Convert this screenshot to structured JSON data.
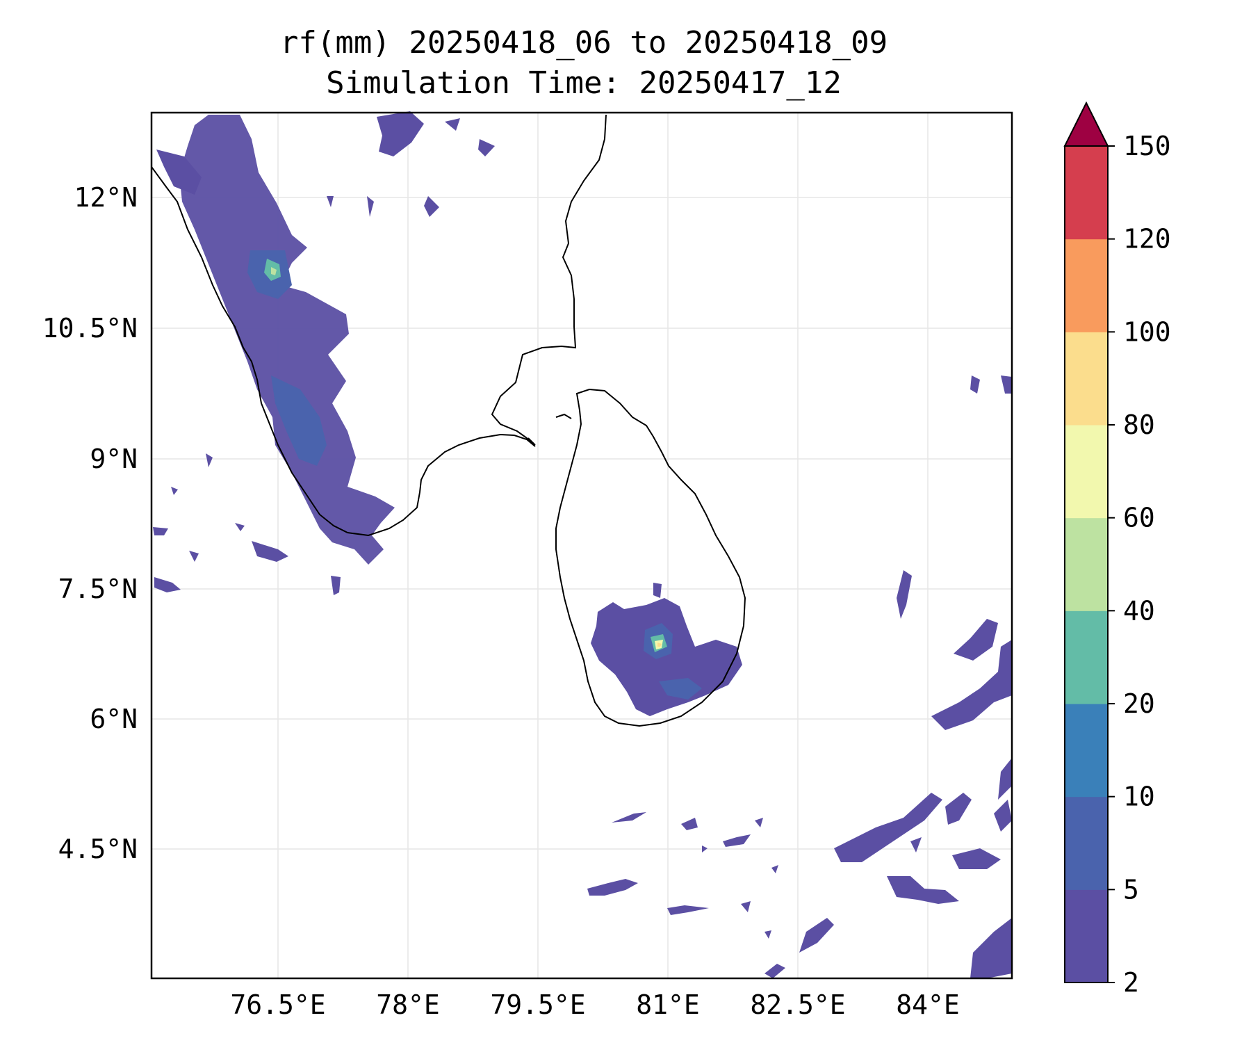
{
  "title": {
    "line1": "rf(mm) 20250418_06 to 20250418_09",
    "line2": "Simulation Time: 20250417_12"
  },
  "axes": {
    "x_ticks": [
      "76.5°E",
      "78°E",
      "79.5°E",
      "81°E",
      "82.5°E",
      "84°E"
    ],
    "y_ticks": [
      "12°N",
      "10.5°N",
      "9°N",
      "7.5°N",
      "6°N",
      "4.5°N"
    ],
    "grid": true
  },
  "colorbar": {
    "levels": [
      "2",
      "5",
      "10",
      "20",
      "40",
      "60",
      "80",
      "100",
      "120",
      "150"
    ],
    "colors": [
      "#5b4fa3",
      "#4a63ad",
      "#3a80b9",
      "#63bca7",
      "#bde2a1",
      "#f2f8ae",
      "#fbdd8d",
      "#f99b5d",
      "#d53e4e"
    ],
    "extend_color": "#9e0142",
    "extend": "max"
  },
  "map": {
    "land_outline": "#000000",
    "rain_color_light": "#5b4fa3",
    "peak_locations": [
      "Western Ghats near 11.3°N 76.5°E",
      "central Sri Lanka near 6.9°N 80.8°E"
    ]
  }
}
